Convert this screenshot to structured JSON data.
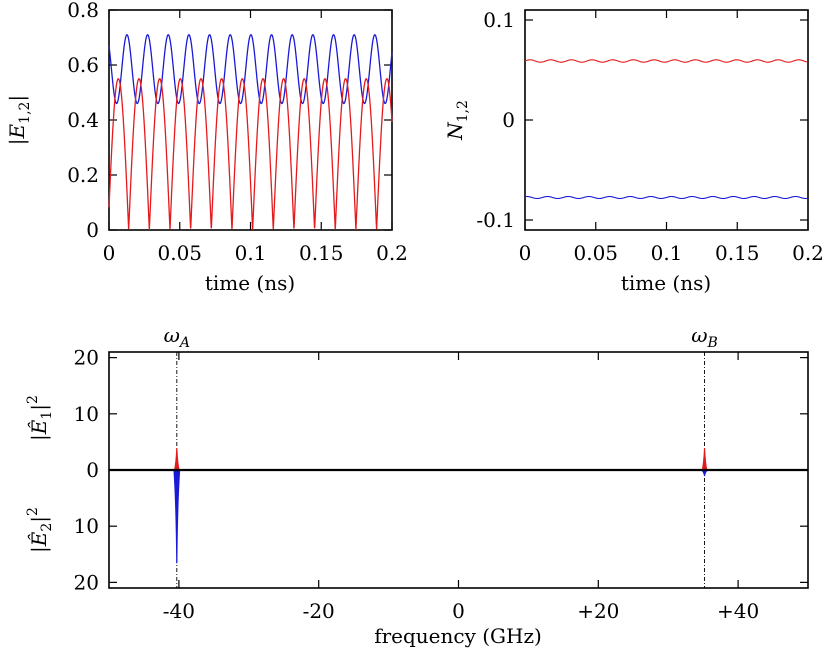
{
  "colors": {
    "red": "#e41a1c",
    "blue": "#1a1ad6",
    "axis": "#000000"
  },
  "chart_data": [
    {
      "type": "line",
      "name": "field-amplitudes",
      "xlabel": "time (ns)",
      "ylabel": "|E1,2|",
      "xlim": [
        0,
        0.2
      ],
      "ylim": [
        0,
        0.8
      ],
      "xticks": [
        "0",
        "0.05",
        "0.1",
        "0.15",
        "0.2"
      ],
      "yticks": [
        "0",
        "0.2",
        "0.4",
        "0.6",
        "0.8"
      ],
      "series": [
        {
          "color": "#1a1ad6",
          "form": "periodic",
          "mean": 0.585,
          "amplitude": 0.125,
          "period_ns": 0.0146,
          "min": 0.46,
          "max": 0.71
        },
        {
          "color": "#e41a1c",
          "form": "periodic-abs",
          "peak": 0.55,
          "min": 0.0,
          "period_ns": 0.0146
        }
      ]
    },
    {
      "type": "line",
      "name": "carrier-densities",
      "xlabel": "time (ns)",
      "ylabel": "N1,2",
      "xlim": [
        0,
        0.2
      ],
      "ylim": [
        -0.11,
        0.11
      ],
      "xticks": [
        "0",
        "0.05",
        "0.1",
        "0.15",
        "0.2"
      ],
      "yticks": [
        "-0.1",
        "0",
        "0.1"
      ],
      "series": [
        {
          "color": "#e41a1c",
          "form": "ripple",
          "mean": 0.059,
          "ripple": 0.0012,
          "period_ns": 0.0146
        },
        {
          "color": "#1a1ad6",
          "form": "ripple",
          "mean": -0.0775,
          "ripple": 0.001,
          "period_ns": 0.0146
        }
      ]
    },
    {
      "type": "line",
      "name": "power-spectra",
      "xlabel": "frequency (GHz)",
      "ylabel_top": "|Ê1|²",
      "ylabel_bottom": "|Ê2|²",
      "xlim": [
        -50,
        50
      ],
      "ylim": [
        -21,
        21
      ],
      "xticks": [
        {
          "value": -40,
          "label": "-40"
        },
        {
          "value": -20,
          "label": "-20"
        },
        {
          "value": 0,
          "label": "0"
        },
        {
          "value": 20,
          "label": "+20"
        },
        {
          "value": 40,
          "label": "+40"
        }
      ],
      "yticks": [
        {
          "value": 20,
          "label": "20"
        },
        {
          "value": 10,
          "label": "10"
        },
        {
          "value": 0,
          "label": "0"
        },
        {
          "value": -10,
          "label": "10"
        },
        {
          "value": -20,
          "label": "20"
        }
      ],
      "markers": [
        {
          "label": "ωA",
          "x": -40.3
        },
        {
          "label": "ωB",
          "x": 35.2
        }
      ],
      "peaks": [
        {
          "color": "#e41a1c",
          "side": "top",
          "x": -40.3,
          "height": 3.8
        },
        {
          "color": "#e41a1c",
          "side": "top",
          "x": 35.2,
          "height": 3.8
        },
        {
          "color": "#1a1ad6",
          "side": "bottom",
          "x": -40.3,
          "height": 16.5
        },
        {
          "color": "#1a1ad6",
          "side": "bottom",
          "x": 35.2,
          "height": 1.0
        }
      ]
    }
  ]
}
